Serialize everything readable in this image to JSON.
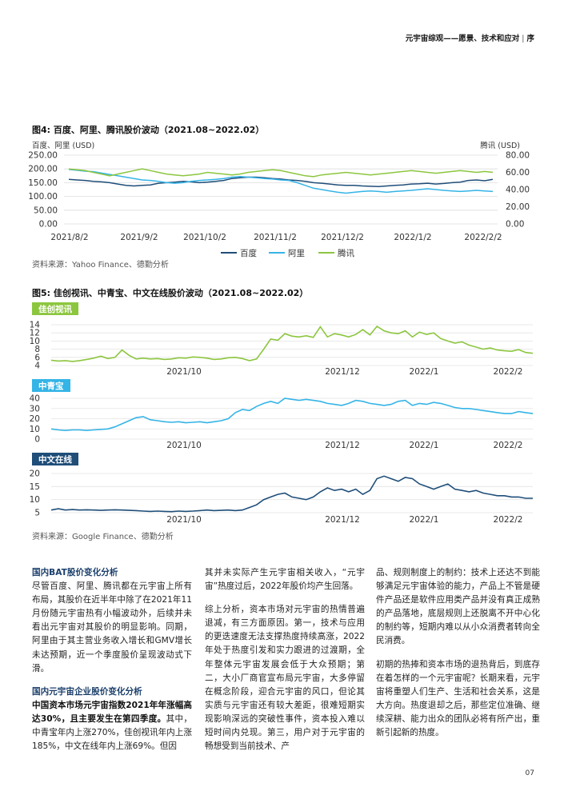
{
  "header": {
    "title": "元宇宙综观——愿景、技术和应对",
    "section": "序"
  },
  "figure4": {
    "title": "图4: 百度、阿里、腾讯股价波动（2021.08~2022.02）",
    "left_unit": "百度、阿里 (USD)",
    "right_unit": "腾讯 (USD)",
    "source": "资料来源：Yahoo Finance、德勤分析",
    "chart_data": {
      "type": "line",
      "x_ticks": [
        "2021/8/2",
        "2021/9/2",
        "2021/10/2",
        "2021/11/2",
        "2021/12/2",
        "2022/1/2",
        "2022/2/2"
      ],
      "y_left_ticks": [
        "250.00",
        "200.00",
        "150.00",
        "100.00",
        "50.00",
        "0.00"
      ],
      "y_right_ticks": [
        "80.00",
        "60.00",
        "40.00",
        "20.00",
        "0.00"
      ],
      "ylim_left": [
        0,
        250
      ],
      "ylim_right": [
        0,
        80
      ],
      "grid": true,
      "legend_position": "bottom",
      "series": [
        {
          "name": "百度",
          "axis": "left",
          "color": "#1f4e79",
          "values": [
            162,
            160,
            158,
            155,
            153,
            150,
            145,
            140,
            138,
            140,
            142,
            148,
            150,
            152,
            155,
            153,
            150,
            152,
            155,
            158,
            165,
            168,
            170,
            170,
            168,
            165,
            163,
            160,
            158,
            155,
            150,
            148,
            145,
            142,
            140,
            140,
            138,
            137,
            136,
            138,
            140,
            142,
            145,
            146,
            148,
            145,
            147,
            150,
            152,
            158,
            160,
            157,
            162
          ]
        },
        {
          "name": "阿里",
          "axis": "left",
          "color": "#35b4e6",
          "values": [
            198,
            195,
            192,
            190,
            185,
            180,
            175,
            170,
            165,
            160,
            158,
            155,
            150,
            148,
            150,
            155,
            158,
            160,
            162,
            165,
            170,
            172,
            170,
            168,
            165,
            163,
            160,
            158,
            150,
            140,
            130,
            125,
            120,
            115,
            112,
            115,
            118,
            120,
            118,
            115,
            118,
            120,
            122,
            125,
            128,
            125,
            122,
            120,
            118,
            120,
            122,
            120,
            118
          ]
        },
        {
          "name": "腾讯",
          "axis": "right",
          "color": "#8cc63f",
          "values": [
            64,
            63,
            62,
            60,
            58,
            56,
            58,
            60,
            62,
            64,
            62,
            60,
            58,
            57,
            56,
            57,
            58,
            60,
            59,
            58,
            57,
            58,
            60,
            61,
            62,
            63,
            62,
            60,
            58,
            56,
            55,
            57,
            58,
            59,
            60,
            59,
            58,
            57,
            58,
            59,
            60,
            61,
            62,
            61,
            60,
            59,
            60,
            61,
            62,
            61,
            60,
            61,
            60
          ]
        }
      ]
    }
  },
  "figure5": {
    "title": "图5: 佳创视讯、中青宝、中文在线股价波动（2021.08~2022.02）",
    "source": "资料来源：Google Finance、德勤分析",
    "panels": [
      {
        "label": "佳创视讯",
        "tag_color": "#8cc63f",
        "line_color": "#8cc63f",
        "y_ticks": [
          "14",
          "12",
          "10",
          "8",
          "6",
          "4"
        ],
        "ylim": [
          4,
          14
        ],
        "x_ticks": [
          "2021/10",
          "2021/12",
          "2022/1",
          "2022/2"
        ],
        "chart_data": {
          "type": "line",
          "ylim": [
            4,
            14
          ],
          "values": [
            5.3,
            5.1,
            5.2,
            5.0,
            5.2,
            5.5,
            5.8,
            6.3,
            5.7,
            6.0,
            7.8,
            6.5,
            5.6,
            5.8,
            5.6,
            5.7,
            5.5,
            5.6,
            5.9,
            5.8,
            6.1,
            6.0,
            5.8,
            5.5,
            5.6,
            5.9,
            6.0,
            5.7,
            5.2,
            5.6,
            8.0,
            10.5,
            10.2,
            11.8,
            11.2,
            11.0,
            11.3,
            10.9,
            13.5,
            11.0,
            11.8,
            11.5,
            11.0,
            11.6,
            12.8,
            11.5,
            13.6,
            12.5,
            12.0,
            11.8,
            12.5,
            11.0,
            12.2,
            11.6,
            12.0,
            10.6,
            10.0,
            9.5,
            9.8,
            9.0,
            8.5,
            8.0,
            8.3,
            7.8,
            7.6,
            7.5,
            7.9,
            7.2,
            7.0
          ]
        }
      },
      {
        "label": "中青宝",
        "tag_color": "#35b4e6",
        "line_color": "#35b4e6",
        "y_ticks": [
          "40",
          "30",
          "20",
          "10",
          "0"
        ],
        "ylim": [
          0,
          40
        ],
        "x_ticks": [
          "2021/10",
          "2021/12",
          "2022/1",
          "2022/2"
        ],
        "chart_data": {
          "type": "line",
          "ylim": [
            0,
            40
          ],
          "values": [
            10,
            9,
            8.5,
            9,
            9,
            8.5,
            9,
            9.5,
            10,
            12,
            15,
            18,
            21,
            22,
            19,
            18,
            17,
            16.5,
            17,
            16,
            16.5,
            17,
            16,
            17,
            18,
            20,
            26,
            29,
            28,
            32,
            35,
            37,
            35,
            40,
            39,
            38,
            39,
            38,
            37,
            35,
            34,
            33,
            35,
            38,
            37,
            35,
            34,
            33,
            34,
            37,
            38,
            33,
            35,
            34,
            36,
            35,
            33,
            31,
            30,
            30,
            29,
            28,
            27,
            26,
            25,
            25,
            27,
            26,
            25
          ]
        }
      },
      {
        "label": "中文在线",
        "tag_color": "#1f4e79",
        "line_color": "#1f4e79",
        "y_ticks": [
          "20",
          "15",
          "10",
          "5"
        ],
        "ylim": [
          5,
          20
        ],
        "x_ticks": [
          "2021/10",
          "2021/12",
          "2022/1",
          "2022/2"
        ],
        "chart_data": {
          "type": "line",
          "ylim": [
            5,
            20
          ],
          "values": [
            6,
            6.5,
            6,
            6.2,
            6,
            6.1,
            6,
            5.9,
            6,
            6.1,
            6,
            5.9,
            5.8,
            5.6,
            5.5,
            5.6,
            5.5,
            5.4,
            5.6,
            5.5,
            5.6,
            5.8,
            6,
            5.8,
            5.9,
            6,
            5.8,
            6,
            7,
            8,
            10,
            11,
            12,
            12.5,
            11,
            10.5,
            10,
            11,
            13,
            14.5,
            13.5,
            14,
            13,
            14,
            12,
            13.5,
            18,
            19,
            18,
            17,
            18.5,
            18,
            16,
            15,
            14,
            15,
            16,
            14,
            13.5,
            13,
            13.5,
            12.5,
            12,
            11.5,
            11.5,
            11,
            11,
            10.5,
            10.5
          ]
        }
      }
    ]
  },
  "body": {
    "col1_h1": "国内BAT股价变化分析",
    "col1_p1": "尽管百度、阿里、腾讯都在元宇宙上所有布局，其股价在近半年中除了在2021年11月份随元宇宙热有小幅波动外，后续并未看出元宇宙对其股价的明显影响。同期，阿里由于其主营业务收入增长和GMV增长未达预期，近一个季度股价呈现波动式下滑。",
    "col1_h2": "国内元宇宙企业股价变化分析",
    "col1_bold": "中国资本市场元宇宙指数2021年年涨幅高达30%，且主要发生在第四季度。",
    "col1_p2": "其中，中青宝年内上涨270%，佳创视讯年内上涨185%，中文在线年内上涨69%。但因",
    "col2_p1": "其并未实际产生元宇宙相关收入，“元宇宙”热度过后，2022年股价均产生回落。",
    "col2_p2": "综上分析，资本市场对元宇宙的热情普遍退减，有三方面原因。第一，技术与应用的更迭速度无法支撑热度持续高涨，2022年处于热度引发和实力跟进的过渡期，全年整体元宇宙发展会低于大众预期；第二，大小厂商官宣布局元宇宙，大多停留在概念阶段，迎合元宇宙的风口，但论其实质与元宇宙还有较大差距，很难短期实现影响深远的突破性事件，资本投入难以短时间内兑现。第三，用户对于元宇宙的畅想受到当前技术、产",
    "col3_p1": "品、规则制度上的制约：技术上还达不到能够满足元宇宙体验的能力，产品上不管是硬件产品还是软件应用类产品并没有真正成熟的产品落地，底层规则上还脱离不开中心化的制约等，短期内难以从小众消费者转向全民消费。",
    "col3_p2": "初期的热捧和资本市场的退热背后，到底存在着怎样的一个元宇宙呢？长期来看，元宇宙将重塑人们生产、生活和社会关系，这是大方向。热度退却之后，那些定位准确、继续深耕、能力出众的团队必将有所产出，重新引起新的热度。"
  },
  "page_number": "07"
}
